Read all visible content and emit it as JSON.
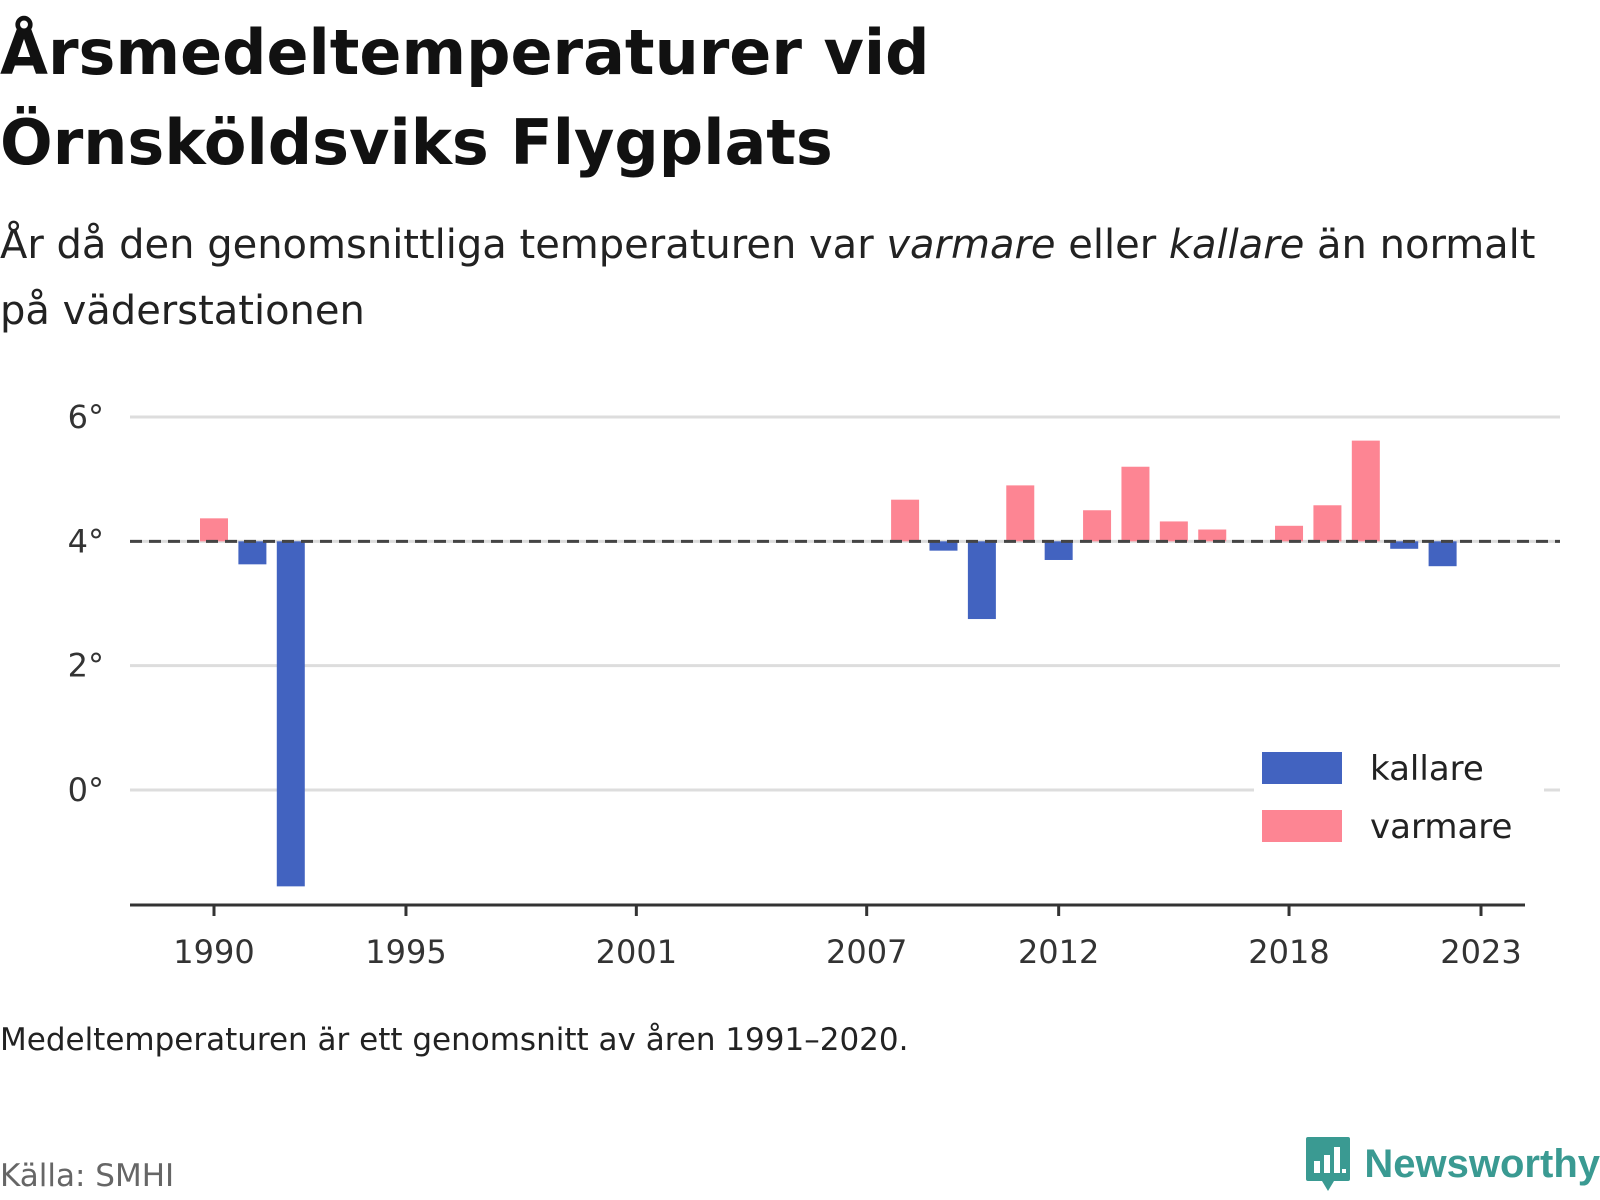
{
  "title_line1": "Årsmedeltemperaturer vid",
  "title_line2": "Örnsköldsviks Flygplats",
  "subtitle": {
    "part1": "År då den genomsnittliga temperaturen var ",
    "warm_word": "varmare",
    "part2": " eller ",
    "cold_word": "kallare",
    "part3": " än normalt på väderstationen"
  },
  "note": "Medeltemperaturen är ett genomsnitt av åren 1991–2020.",
  "source": "Källa: SMHI",
  "brand": {
    "name": "Newsworthy",
    "icon": "newsworthy-logo-icon"
  },
  "colors": {
    "cold": "#4263c0",
    "warm": "#fd8593",
    "reference": "#444444",
    "grid": "#dddddd",
    "axis": "#333333"
  },
  "chart_data": {
    "type": "bar",
    "title": "Årsmedeltemperaturer vid Örnsköldsviks Flygplats",
    "baseline": 4.0,
    "baseline_style": "dashed",
    "ylim": [
      -1.8,
      6.2
    ],
    "yticks": [
      0,
      2,
      4,
      6
    ],
    "ytick_labels": [
      "0°",
      "2°",
      "4°",
      "6°"
    ],
    "xlim": [
      1989,
      2024
    ],
    "xticks": [
      1990,
      1995,
      2001,
      2007,
      2012,
      2018,
      2023
    ],
    "grid": true,
    "legend_position": "bottom-right",
    "series": [
      {
        "name": "kallare",
        "color": "#4263c0",
        "x": [
          1991,
          1992,
          2009,
          2010,
          2012,
          2021,
          2022
        ],
        "values": [
          3.63,
          -1.55,
          3.85,
          2.75,
          3.7,
          3.88,
          3.6
        ]
      },
      {
        "name": "varmare",
        "color": "#fd8593",
        "x": [
          1990,
          2008,
          2011,
          2013,
          2014,
          2015,
          2016,
          2018,
          2019,
          2020
        ],
        "values": [
          4.37,
          4.67,
          4.9,
          4.5,
          5.2,
          4.32,
          4.19,
          4.25,
          4.58,
          5.62
        ]
      }
    ]
  }
}
